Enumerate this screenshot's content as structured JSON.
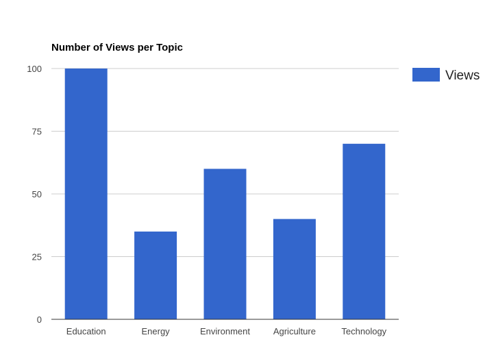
{
  "chart_data": {
    "type": "bar",
    "title": "Number of Views per Topic",
    "categories": [
      "Education",
      "Energy",
      "Environment",
      "Agriculture",
      "Technology"
    ],
    "series": [
      {
        "name": "Views",
        "values": [
          100,
          35,
          60,
          40,
          70
        ],
        "color": "#3366cc"
      }
    ],
    "ylim": [
      0,
      100
    ],
    "yticks": [
      0,
      25,
      50,
      75,
      100
    ],
    "grid": true,
    "legend_position": "right"
  }
}
